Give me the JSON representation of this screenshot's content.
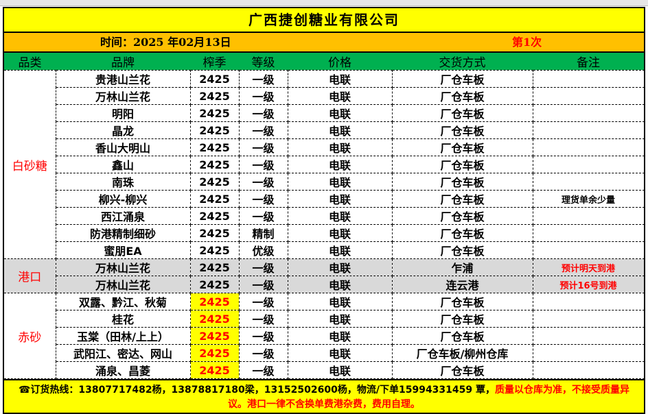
{
  "title": "广西捷创糖业有限公司",
  "date": "时间：2025 年02月13日",
  "round": "第1次",
  "headers": [
    "品类",
    "品牌",
    "榨季",
    "等级",
    "价格",
    "交货方式",
    "备注"
  ],
  "categories": {
    "white": "白砂糖",
    "port": "港口",
    "red": "赤砂"
  },
  "white_rows": [
    [
      "贵港山兰花",
      "2425",
      "一级",
      "电联",
      "厂仓车板",
      ""
    ],
    [
      "万林山兰花",
      "2425",
      "一级",
      "电联",
      "厂仓车板",
      ""
    ],
    [
      "明阳",
      "2425",
      "一级",
      "电联",
      "厂仓车板",
      ""
    ],
    [
      "晶龙",
      "2425",
      "一级",
      "电联",
      "厂仓车板",
      ""
    ],
    [
      "香山大明山",
      "2425",
      "一级",
      "电联",
      "厂仓车板",
      ""
    ],
    [
      "鑫山",
      "2425",
      "一级",
      "电联",
      "厂仓车板",
      ""
    ],
    [
      "南珠",
      "2425",
      "一级",
      "电联",
      "厂仓车板",
      ""
    ],
    [
      "柳兴-柳兴",
      "2425",
      "一级",
      "电联",
      "厂仓车板",
      "理货单余少量"
    ],
    [
      "西江涌泉",
      "2425",
      "一级",
      "电联",
      "厂仓车板",
      ""
    ],
    [
      "防港精制细砂",
      "2425",
      "精制",
      "电联",
      "厂仓车板",
      ""
    ],
    [
      "蜜朋EA",
      "2425",
      "优级",
      "电联",
      "厂仓车板",
      ""
    ]
  ],
  "port_rows": [
    [
      "万林山兰花",
      "2425",
      "一级",
      "电联",
      "乍浦",
      "预计明天到港"
    ],
    [
      "万林山兰花",
      "2425",
      "一级",
      "电联",
      "连云港",
      "预计16号到港"
    ]
  ],
  "red_rows": [
    [
      "双露、黔江、秋菊",
      "2425",
      "一级",
      "电联",
      "厂仓车板",
      ""
    ],
    [
      "桂花",
      "2425",
      "一级",
      "电联",
      "厂仓车板",
      ""
    ],
    [
      "玉棠（田林/上上）",
      "2425",
      "一级",
      "电联",
      "厂仓车板",
      ""
    ],
    [
      "武阳江、密达、网山",
      "2425",
      "一级",
      "电联",
      "厂仓车板/柳州仓库",
      ""
    ],
    [
      "涌泉、昌菱",
      "2425",
      "一级",
      "电联",
      "厂仓车板",
      ""
    ]
  ],
  "footer": {
    "icon": "phone-icon",
    "hotline": "☎订货热线：13807717482杨，13878817180梁，13152502600杨，物流/下单15994331459 覃，",
    "notice": "质量以仓库为准，不接受质量异议。港口一律不含换单费港杂费，费用自理。"
  },
  "colors": {
    "title_bg": "#ffff00",
    "date_bg": "#ffc000",
    "header_bg": "#00b050",
    "port_bg": "#d9d9d9",
    "accent": "#ff0000"
  }
}
